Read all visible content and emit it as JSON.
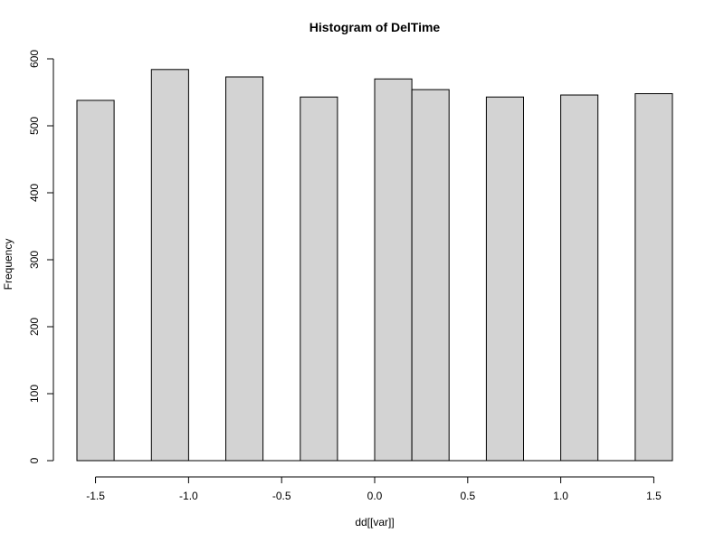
{
  "chart_data": {
    "type": "bar",
    "title": "Histogram of DelTime",
    "xlabel": "dd[[var]]",
    "ylabel": "Frequency",
    "bars": [
      {
        "x_start": -1.6,
        "x_end": -1.4,
        "value": 538
      },
      {
        "x_start": -1.2,
        "x_end": -1.0,
        "value": 584
      },
      {
        "x_start": -0.8,
        "x_end": -0.6,
        "value": 573
      },
      {
        "x_start": -0.4,
        "x_end": -0.2,
        "value": 543
      },
      {
        "x_start": 0.0,
        "x_end": 0.2,
        "value": 570
      },
      {
        "x_start": 0.2,
        "x_end": 0.4,
        "value": 554
      },
      {
        "x_start": 0.6,
        "x_end": 0.8,
        "value": 543
      },
      {
        "x_start": 1.0,
        "x_end": 1.2,
        "value": 546
      },
      {
        "x_start": 1.4,
        "x_end": 1.6,
        "value": 548
      }
    ],
    "xlim": [
      -1.6,
      1.6
    ],
    "ylim": [
      0,
      600
    ],
    "x_ticks": [
      -1.5,
      -1.0,
      -0.5,
      0.0,
      0.5,
      1.0,
      1.5
    ],
    "x_tick_labels": [
      "-1.5",
      "-1.0",
      "-0.5",
      "0.0",
      "0.5",
      "1.0",
      "1.5"
    ],
    "y_ticks": [
      0,
      100,
      200,
      300,
      400,
      500,
      600
    ],
    "y_tick_labels": [
      "0",
      "100",
      "200",
      "300",
      "400",
      "500",
      "600"
    ],
    "bar_fill": "#d3d3d3",
    "bar_stroke": "#000000",
    "grid": false
  }
}
